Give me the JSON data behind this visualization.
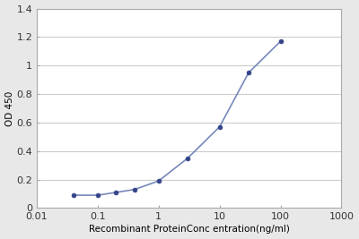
{
  "x": [
    0.04,
    0.1,
    0.2,
    0.4,
    1.0,
    3.0,
    10.0,
    30.0,
    100.0
  ],
  "y": [
    0.09,
    0.09,
    0.11,
    0.13,
    0.19,
    0.35,
    0.57,
    0.95,
    1.17
  ],
  "line_color": "#7788bb",
  "marker_color": "#334488",
  "marker_style": "o",
  "marker_size": 3.5,
  "line_width": 1.2,
  "xlabel": "Recombinant ProteinConc entration(ng/ml)",
  "ylabel": "OD 450",
  "xlim": [
    0.01,
    1000
  ],
  "ylim": [
    0,
    1.4
  ],
  "yticks": [
    0,
    0.2,
    0.4,
    0.6,
    0.8,
    1.0,
    1.2,
    1.4
  ],
  "xticks": [
    0.01,
    0.1,
    1,
    10,
    100,
    1000
  ],
  "xtick_labels": [
    "0.01",
    "0.1",
    "1",
    "10",
    "100",
    "1000"
  ],
  "figure_bg_color": "#e8e8e8",
  "plot_bg_color": "#ffffff",
  "xlabel_fontsize": 7.5,
  "ylabel_fontsize": 7.5,
  "tick_fontsize": 8,
  "grid_color": "#cccccc",
  "grid_linewidth": 0.8,
  "spine_color": "#aaaaaa"
}
